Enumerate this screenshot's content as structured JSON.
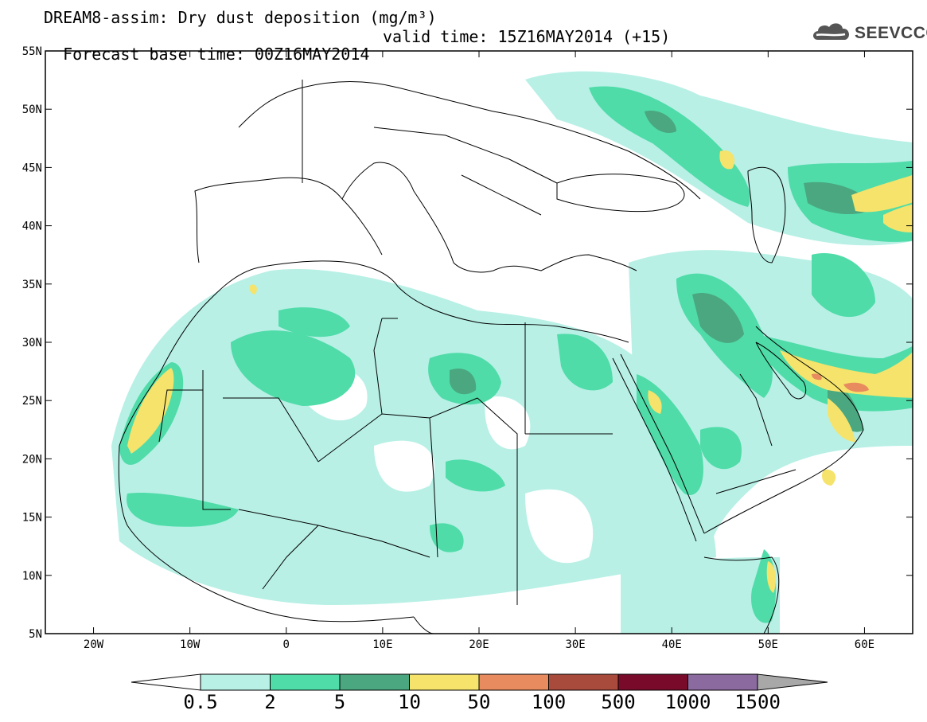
{
  "title_line1": "DREAM8-assim: Dry dust deposition (mg/m³)",
  "title_line2_left": "Forecast base time: 00Z16MAY2014",
  "title_line2_right": "valid time: 15Z16MAY2014 (+15)",
  "logo_text": "SEEVCCC",
  "lat_labels": [
    "55N",
    "50N",
    "45N",
    "40N",
    "35N",
    "30N",
    "25N",
    "20N",
    "15N",
    "10N",
    "5N"
  ],
  "lon_labels": [
    "20W",
    "10W",
    "0",
    "10E",
    "20E",
    "30E",
    "40E",
    "50E",
    "60E"
  ],
  "colorbar": {
    "labels": [
      "0.5",
      "2",
      "5",
      "10",
      "50",
      "100",
      "500",
      "1000",
      "1500"
    ],
    "colors": [
      "#b8f0e6",
      "#4fdca8",
      "#4aa77f",
      "#f5e36b",
      "#e88b5e",
      "#a84a3c",
      "#7a0a2a",
      "#8b6aa0"
    ],
    "under_color": "#ffffff",
    "over_color": "#a8a8a8"
  },
  "map_extent": {
    "lon": [
      -25,
      65
    ],
    "lat": [
      5,
      55
    ]
  }
}
